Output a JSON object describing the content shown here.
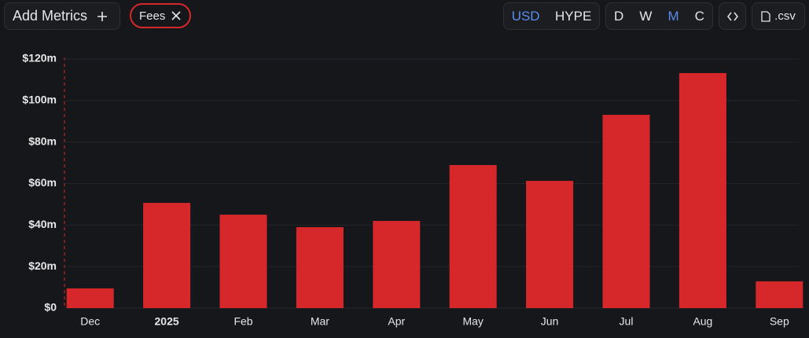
{
  "toolbar": {
    "add_metrics": "Add Metrics",
    "metric": "Fees",
    "currencies": [
      "USD",
      "HYPE"
    ],
    "periods": [
      "D",
      "W",
      "M",
      "C"
    ],
    "export": ".csv"
  },
  "chart_data": {
    "type": "bar",
    "categories": [
      "Dec",
      "2025",
      "Feb",
      "Mar",
      "Apr",
      "May",
      "Jun",
      "Jul",
      "Aug",
      "Sep"
    ],
    "values": [
      9.5,
      50.7,
      45,
      39,
      42,
      68.9,
      61.3,
      93.1,
      113.2,
      12.9
    ],
    "color": "#d6282b",
    "ylim": [
      0,
      120
    ],
    "yticks": [
      {
        "value": 0,
        "label": "$0"
      },
      {
        "value": 20,
        "label": "$20m"
      },
      {
        "value": 40,
        "label": "$40m"
      },
      {
        "value": 60,
        "label": "$60m"
      },
      {
        "value": 80,
        "label": "$80m"
      },
      {
        "value": 100,
        "label": "$100m"
      },
      {
        "value": 120,
        "label": "$120m"
      }
    ],
    "grid": true
  }
}
